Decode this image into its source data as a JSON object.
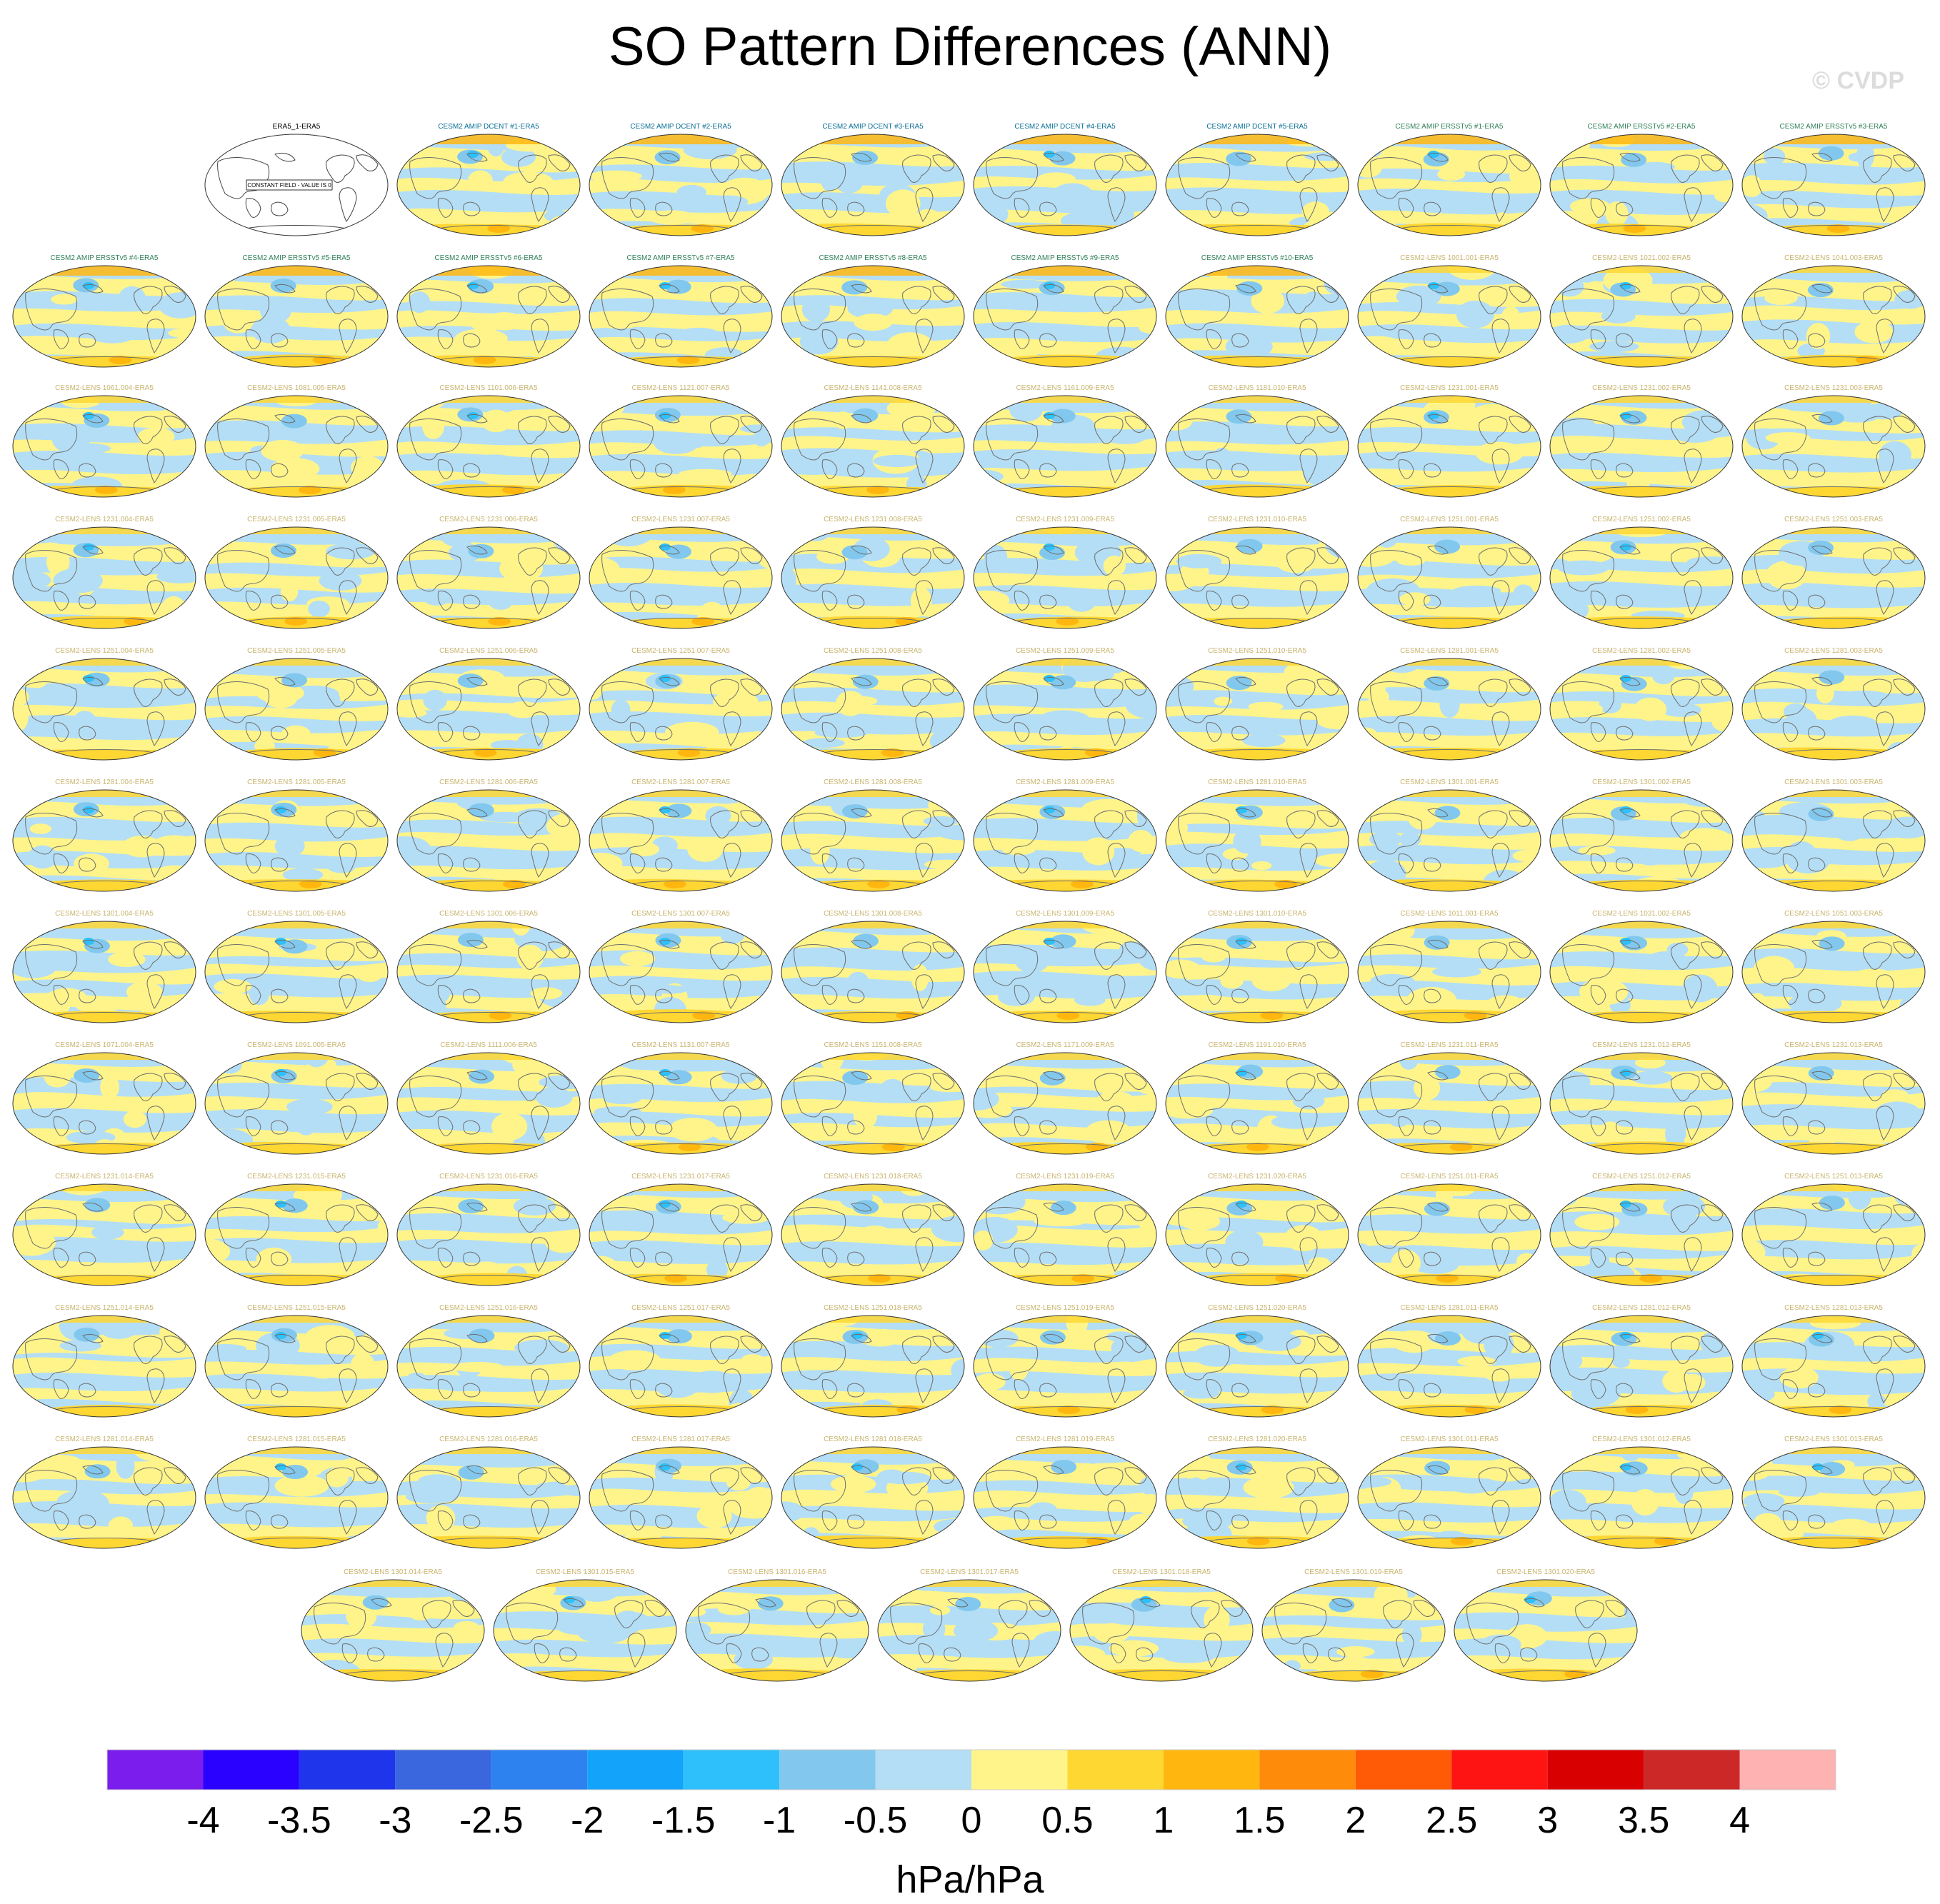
{
  "title": "SO Pattern Differences (ANN)",
  "watermark": "© CVDP",
  "chart_data": {
    "type": "heatmap",
    "title": "SO Pattern Differences (ANN)",
    "colorbar": {
      "unit": "hPa/hPa",
      "ticks": [
        "-4",
        "-3.5",
        "-3",
        "-2.5",
        "-2",
        "-1.5",
        "-1",
        "-0.5",
        "0",
        "0.5",
        "1",
        "1.5",
        "2",
        "2.5",
        "3",
        "3.5",
        "4"
      ],
      "colors": [
        "#7a1ded",
        "#2a00ff",
        "#1f35eb",
        "#3a66de",
        "#2e82f0",
        "#14a3fa",
        "#2dc0fa",
        "#82c8ee",
        "#b4def5",
        "#fff48a",
        "#ffd733",
        "#ffb70f",
        "#ff8b0b",
        "#ff5a05",
        "#ff1414",
        "#d80000",
        "#cc2828",
        "#ffb2b2"
      ]
    },
    "panels": [
      {
        "title": "ERA5_1-ERA5",
        "color": "#000000",
        "pattern": "empty",
        "note": "CONSTANT FIELD - VALUE IS 0"
      },
      {
        "title": "CESM2 AMIP DCENT #1-ERA5",
        "color": "#0a6e96",
        "pattern": "amip"
      },
      {
        "title": "CESM2 AMIP DCENT #2-ERA5",
        "color": "#0a6e96",
        "pattern": "amip"
      },
      {
        "title": "CESM2 AMIP DCENT #3-ERA5",
        "color": "#0a6e96",
        "pattern": "amip"
      },
      {
        "title": "CESM2 AMIP DCENT #4-ERA5",
        "color": "#0a6e96",
        "pattern": "amip"
      },
      {
        "title": "CESM2 AMIP DCENT #5-ERA5",
        "color": "#0a6e96",
        "pattern": "amip"
      },
      {
        "title": "CESM2 AMIP ERSSTv5 #1-ERA5",
        "color": "#2f7f57",
        "pattern": "amip"
      },
      {
        "title": "CESM2 AMIP ERSSTv5 #2-ERA5",
        "color": "#2f7f57",
        "pattern": "amip"
      },
      {
        "title": "CESM2 AMIP ERSSTv5 #3-ERA5",
        "color": "#2f7f57",
        "pattern": "amip"
      },
      {
        "title": "CESM2 AMIP ERSSTv5 #4-ERA5",
        "color": "#2f7f57",
        "pattern": "amip"
      },
      {
        "title": "CESM2 AMIP ERSSTv5 #5-ERA5",
        "color": "#2f7f57",
        "pattern": "amip"
      },
      {
        "title": "CESM2 AMIP ERSSTv5 #6-ERA5",
        "color": "#2f7f57",
        "pattern": "amip"
      },
      {
        "title": "CESM2 AMIP ERSSTv5 #7-ERA5",
        "color": "#2f7f57",
        "pattern": "amip"
      },
      {
        "title": "CESM2 AMIP ERSSTv5 #8-ERA5",
        "color": "#2f7f57",
        "pattern": "amip"
      },
      {
        "title": "CESM2 AMIP ERSSTv5 #9-ERA5",
        "color": "#2f7f57",
        "pattern": "amip"
      },
      {
        "title": "CESM2 AMIP ERSSTv5 #10-ERA5",
        "color": "#2f7f57",
        "pattern": "amip"
      },
      {
        "title": "CESM2-LENS 1001.001-ERA5",
        "color": "#c8b46e",
        "pattern": "lens"
      },
      {
        "title": "CESM2-LENS 1021.002-ERA5",
        "color": "#c8b46e",
        "pattern": "lens"
      },
      {
        "title": "CESM2-LENS 1041.003-ERA5",
        "color": "#c8b46e",
        "pattern": "lens"
      },
      {
        "title": "CESM2-LENS 1061.004-ERA5",
        "color": "#c8b46e",
        "pattern": "lens"
      },
      {
        "title": "CESM2-LENS 1081.005-ERA5",
        "color": "#c8b46e",
        "pattern": "lens"
      },
      {
        "title": "CESM2-LENS 1101.006-ERA5",
        "color": "#c8b46e",
        "pattern": "lens"
      },
      {
        "title": "CESM2-LENS 1121.007-ERA5",
        "color": "#c8b46e",
        "pattern": "lens"
      },
      {
        "title": "CESM2-LENS 1141.008-ERA5",
        "color": "#c8b46e",
        "pattern": "lens"
      },
      {
        "title": "CESM2-LENS 1161.009-ERA5",
        "color": "#c8b46e",
        "pattern": "lens"
      },
      {
        "title": "CESM2-LENS 1181.010-ERA5",
        "color": "#c8b46e",
        "pattern": "lens"
      },
      {
        "title": "CESM2-LENS 1231.001-ERA5",
        "color": "#c8b46e",
        "pattern": "lens"
      },
      {
        "title": "CESM2-LENS 1231.002-ERA5",
        "color": "#c8b46e",
        "pattern": "lens"
      },
      {
        "title": "CESM2-LENS 1231.003-ERA5",
        "color": "#c8b46e",
        "pattern": "lens"
      },
      {
        "title": "CESM2-LENS 1231.004-ERA5",
        "color": "#c8b46e",
        "pattern": "lens"
      },
      {
        "title": "CESM2-LENS 1231.005-ERA5",
        "color": "#c8b46e",
        "pattern": "lens"
      },
      {
        "title": "CESM2-LENS 1231.006-ERA5",
        "color": "#c8b46e",
        "pattern": "lens"
      },
      {
        "title": "CESM2-LENS 1231.007-ERA5",
        "color": "#c8b46e",
        "pattern": "lens"
      },
      {
        "title": "CESM2-LENS 1231.008-ERA5",
        "color": "#c8b46e",
        "pattern": "lens"
      },
      {
        "title": "CESM2-LENS 1231.009-ERA5",
        "color": "#c8b46e",
        "pattern": "lens"
      },
      {
        "title": "CESM2-LENS 1231.010-ERA5",
        "color": "#c8b46e",
        "pattern": "lens"
      },
      {
        "title": "CESM2-LENS 1251.001-ERA5",
        "color": "#c8b46e",
        "pattern": "lens"
      },
      {
        "title": "CESM2-LENS 1251.002-ERA5",
        "color": "#c8b46e",
        "pattern": "lens"
      },
      {
        "title": "CESM2-LENS 1251.003-ERA5",
        "color": "#c8b46e",
        "pattern": "lens"
      },
      {
        "title": "CESM2-LENS 1251.004-ERA5",
        "color": "#c8b46e",
        "pattern": "lens"
      },
      {
        "title": "CESM2-LENS 1251.005-ERA5",
        "color": "#c8b46e",
        "pattern": "lens"
      },
      {
        "title": "CESM2-LENS 1251.006-ERA5",
        "color": "#c8b46e",
        "pattern": "lens"
      },
      {
        "title": "CESM2-LENS 1251.007-ERA5",
        "color": "#c8b46e",
        "pattern": "lens"
      },
      {
        "title": "CESM2-LENS 1251.008-ERA5",
        "color": "#c8b46e",
        "pattern": "lens"
      },
      {
        "title": "CESM2-LENS 1251.009-ERA5",
        "color": "#c8b46e",
        "pattern": "lens"
      },
      {
        "title": "CESM2-LENS 1251.010-ERA5",
        "color": "#c8b46e",
        "pattern": "lens"
      },
      {
        "title": "CESM2-LENS 1281.001-ERA5",
        "color": "#c8b46e",
        "pattern": "lens"
      },
      {
        "title": "CESM2-LENS 1281.002-ERA5",
        "color": "#c8b46e",
        "pattern": "lens"
      },
      {
        "title": "CESM2-LENS 1281.003-ERA5",
        "color": "#c8b46e",
        "pattern": "lens"
      },
      {
        "title": "CESM2-LENS 1281.004-ERA5",
        "color": "#c8b46e",
        "pattern": "lens"
      },
      {
        "title": "CESM2-LENS 1281.005-ERA5",
        "color": "#c8b46e",
        "pattern": "lens"
      },
      {
        "title": "CESM2-LENS 1281.006-ERA5",
        "color": "#c8b46e",
        "pattern": "lens"
      },
      {
        "title": "CESM2-LENS 1281.007-ERA5",
        "color": "#c8b46e",
        "pattern": "lens"
      },
      {
        "title": "CESM2-LENS 1281.008-ERA5",
        "color": "#c8b46e",
        "pattern": "lens"
      },
      {
        "title": "CESM2-LENS 1281.009-ERA5",
        "color": "#c8b46e",
        "pattern": "lens"
      },
      {
        "title": "CESM2-LENS 1281.010-ERA5",
        "color": "#c8b46e",
        "pattern": "lens"
      },
      {
        "title": "CESM2-LENS 1301.001-ERA5",
        "color": "#c8b46e",
        "pattern": "lens"
      },
      {
        "title": "CESM2-LENS 1301.002-ERA5",
        "color": "#c8b46e",
        "pattern": "lens"
      },
      {
        "title": "CESM2-LENS 1301.003-ERA5",
        "color": "#c8b46e",
        "pattern": "lens"
      },
      {
        "title": "CESM2-LENS 1301.004-ERA5",
        "color": "#c8b46e",
        "pattern": "lens"
      },
      {
        "title": "CESM2-LENS 1301.005-ERA5",
        "color": "#c8b46e",
        "pattern": "lens"
      },
      {
        "title": "CESM2-LENS 1301.006-ERA5",
        "color": "#c8b46e",
        "pattern": "lens"
      },
      {
        "title": "CESM2-LENS 1301.007-ERA5",
        "color": "#c8b46e",
        "pattern": "lens"
      },
      {
        "title": "CESM2-LENS 1301.008-ERA5",
        "color": "#c8b46e",
        "pattern": "lens"
      },
      {
        "title": "CESM2-LENS 1301.009-ERA5",
        "color": "#c8b46e",
        "pattern": "lens"
      },
      {
        "title": "CESM2-LENS 1301.010-ERA5",
        "color": "#c8b46e",
        "pattern": "lens"
      },
      {
        "title": "CESM2-LENS 1011.001-ERA5",
        "color": "#c8b46e",
        "pattern": "lens"
      },
      {
        "title": "CESM2-LENS 1031.002-ERA5",
        "color": "#c8b46e",
        "pattern": "lens"
      },
      {
        "title": "CESM2-LENS 1051.003-ERA5",
        "color": "#c8b46e",
        "pattern": "lens"
      },
      {
        "title": "CESM2-LENS 1071.004-ERA5",
        "color": "#c8b46e",
        "pattern": "lens"
      },
      {
        "title": "CESM2-LENS 1091.005-ERA5",
        "color": "#c8b46e",
        "pattern": "lens"
      },
      {
        "title": "CESM2-LENS 1111.006-ERA5",
        "color": "#c8b46e",
        "pattern": "lens"
      },
      {
        "title": "CESM2-LENS 1131.007-ERA5",
        "color": "#c8b46e",
        "pattern": "lens"
      },
      {
        "title": "CESM2-LENS 1151.008-ERA5",
        "color": "#c8b46e",
        "pattern": "lens"
      },
      {
        "title": "CESM2-LENS 1171.009-ERA5",
        "color": "#c8b46e",
        "pattern": "lens"
      },
      {
        "title": "CESM2-LENS 1191.010-ERA5",
        "color": "#c8b46e",
        "pattern": "lens"
      },
      {
        "title": "CESM2-LENS 1231.011-ERA5",
        "color": "#c8b46e",
        "pattern": "lens"
      },
      {
        "title": "CESM2-LENS 1231.012-ERA5",
        "color": "#c8b46e",
        "pattern": "lens"
      },
      {
        "title": "CESM2-LENS 1231.013-ERA5",
        "color": "#c8b46e",
        "pattern": "lens"
      },
      {
        "title": "CESM2-LENS 1231.014-ERA5",
        "color": "#c8b46e",
        "pattern": "lens"
      },
      {
        "title": "CESM2-LENS 1231.015-ERA5",
        "color": "#c8b46e",
        "pattern": "lens"
      },
      {
        "title": "CESM2-LENS 1231.016-ERA5",
        "color": "#c8b46e",
        "pattern": "lens"
      },
      {
        "title": "CESM2-LENS 1231.017-ERA5",
        "color": "#c8b46e",
        "pattern": "lens"
      },
      {
        "title": "CESM2-LENS 1231.018-ERA5",
        "color": "#c8b46e",
        "pattern": "lens"
      },
      {
        "title": "CESM2-LENS 1231.019-ERA5",
        "color": "#c8b46e",
        "pattern": "lens"
      },
      {
        "title": "CESM2-LENS 1231.020-ERA5",
        "color": "#c8b46e",
        "pattern": "lens"
      },
      {
        "title": "CESM2-LENS 1251.011-ERA5",
        "color": "#c8b46e",
        "pattern": "lens"
      },
      {
        "title": "CESM2-LENS 1251.012-ERA5",
        "color": "#c8b46e",
        "pattern": "lens"
      },
      {
        "title": "CESM2-LENS 1251.013-ERA5",
        "color": "#c8b46e",
        "pattern": "lens"
      },
      {
        "title": "CESM2-LENS 1251.014-ERA5",
        "color": "#c8b46e",
        "pattern": "lens"
      },
      {
        "title": "CESM2-LENS 1251.015-ERA5",
        "color": "#c8b46e",
        "pattern": "lens"
      },
      {
        "title": "CESM2-LENS 1251.016-ERA5",
        "color": "#c8b46e",
        "pattern": "lens"
      },
      {
        "title": "CESM2-LENS 1251.017-ERA5",
        "color": "#c8b46e",
        "pattern": "lens"
      },
      {
        "title": "CESM2-LENS 1251.018-ERA5",
        "color": "#c8b46e",
        "pattern": "lens"
      },
      {
        "title": "CESM2-LENS 1251.019-ERA5",
        "color": "#c8b46e",
        "pattern": "lens"
      },
      {
        "title": "CESM2-LENS 1251.020-ERA5",
        "color": "#c8b46e",
        "pattern": "lens"
      },
      {
        "title": "CESM2-LENS 1281.011-ERA5",
        "color": "#c8b46e",
        "pattern": "lens"
      },
      {
        "title": "CESM2-LENS 1281.012-ERA5",
        "color": "#c8b46e",
        "pattern": "lens"
      },
      {
        "title": "CESM2-LENS 1281.013-ERA5",
        "color": "#c8b46e",
        "pattern": "lens"
      },
      {
        "title": "CESM2-LENS 1281.014-ERA5",
        "color": "#c8b46e",
        "pattern": "lens"
      },
      {
        "title": "CESM2-LENS 1281.015-ERA5",
        "color": "#c8b46e",
        "pattern": "lens"
      },
      {
        "title": "CESM2-LENS 1281.016-ERA5",
        "color": "#c8b46e",
        "pattern": "lens"
      },
      {
        "title": "CESM2-LENS 1281.017-ERA5",
        "color": "#c8b46e",
        "pattern": "lens"
      },
      {
        "title": "CESM2-LENS 1281.018-ERA5",
        "color": "#c8b46e",
        "pattern": "lens"
      },
      {
        "title": "CESM2-LENS 1281.019-ERA5",
        "color": "#c8b46e",
        "pattern": "lens"
      },
      {
        "title": "CESM2-LENS 1281.020-ERA5",
        "color": "#c8b46e",
        "pattern": "lens"
      },
      {
        "title": "CESM2-LENS 1301.011-ERA5",
        "color": "#c8b46e",
        "pattern": "lens"
      },
      {
        "title": "CESM2-LENS 1301.012-ERA5",
        "color": "#c8b46e",
        "pattern": "lens"
      },
      {
        "title": "CESM2-LENS 1301.013-ERA5",
        "color": "#c8b46e",
        "pattern": "lens"
      },
      {
        "title": "CESM2-LENS 1301.014-ERA5",
        "color": "#c8b46e",
        "pattern": "lens"
      },
      {
        "title": "CESM2-LENS 1301.015-ERA5",
        "color": "#c8b46e",
        "pattern": "lens"
      },
      {
        "title": "CESM2-LENS 1301.016-ERA5",
        "color": "#c8b46e",
        "pattern": "lens"
      },
      {
        "title": "CESM2-LENS 1301.017-ERA5",
        "color": "#c8b46e",
        "pattern": "lens"
      },
      {
        "title": "CESM2-LENS 1301.018-ERA5",
        "color": "#c8b46e",
        "pattern": "lens"
      },
      {
        "title": "CESM2-LENS 1301.019-ERA5",
        "color": "#c8b46e",
        "pattern": "lens"
      },
      {
        "title": "CESM2-LENS 1301.020-ERA5",
        "color": "#c8b46e",
        "pattern": "lens"
      }
    ]
  }
}
